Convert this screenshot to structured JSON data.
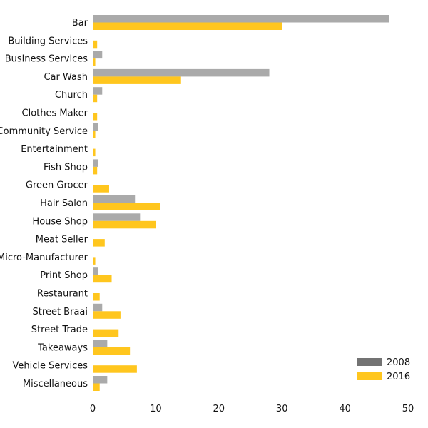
{
  "chart_data": {
    "type": "bar",
    "orientation": "horizontal",
    "categories": [
      "Bar",
      "Building Services",
      "Business Services",
      "Car Wash",
      "Church",
      "Clothes Maker",
      "Community Service",
      "Entertainment",
      "Fish Shop",
      "Green Grocer",
      "Hair Salon",
      "House Shop",
      "Meat Seller",
      "Micro-Manufacturer",
      "Print Shop",
      "Restaurant",
      "Street Braai",
      "Street Trade",
      "Takeaways",
      "Vehicle Services",
      "Miscellaneous"
    ],
    "series": [
      {
        "name": "2008",
        "color": "#aaaaaa",
        "legend_color": "#737373",
        "values": [
          47,
          0,
          1.5,
          28,
          1.5,
          0,
          0.8,
          0,
          0.8,
          0,
          6.7,
          7.5,
          0,
          0,
          0.8,
          0,
          1.5,
          0,
          2.3,
          0,
          2.3
        ]
      },
      {
        "name": "2016",
        "color": "#ffc61e",
        "legend_color": "#ffc61e",
        "values": [
          30,
          0.7,
          0.4,
          14,
          0.7,
          0.7,
          0.4,
          0.4,
          0.7,
          2.6,
          10.7,
          10,
          1.9,
          0.4,
          3,
          1.1,
          4.4,
          4.1,
          5.9,
          7,
          1.1
        ]
      }
    ],
    "x_ticks": [
      0,
      10,
      20,
      30,
      40,
      50
    ],
    "xlim": [
      0,
      50
    ],
    "grid": false,
    "legend_position": "bottom-right"
  }
}
